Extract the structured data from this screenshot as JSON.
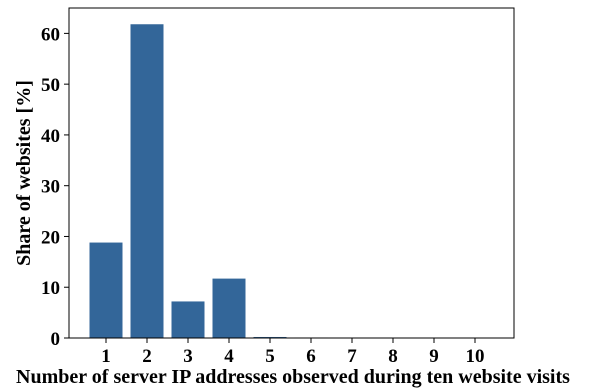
{
  "chart_data": {
    "type": "bar",
    "categories": [
      "1",
      "2",
      "3",
      "4",
      "5",
      "6",
      "7",
      "8",
      "9",
      "10"
    ],
    "values": [
      18.8,
      61.8,
      7.2,
      11.7,
      0.2,
      0.1,
      0.05,
      0.05,
      0.05,
      0.05
    ],
    "title": "",
    "xlabel": "Number of server IP addresses observed during ten website visits",
    "ylabel": "Share of websites [%]",
    "ylim": [
      0,
      65
    ],
    "yticks": [
      0,
      10,
      20,
      30,
      40,
      50,
      60
    ],
    "ytick_labels": [
      "0",
      "10",
      "20",
      "30",
      "40",
      "50",
      "60"
    ],
    "bar_color": "#336699",
    "grid": false,
    "legend": "none"
  }
}
